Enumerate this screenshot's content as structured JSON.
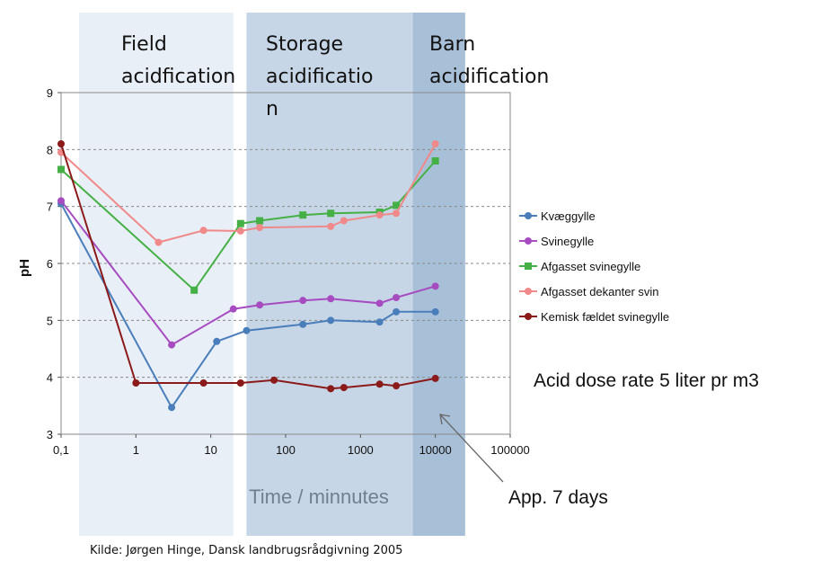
{
  "chart_data": {
    "type": "line",
    "ylabel": "pH",
    "xlabel": "Time / minnutes",
    "x_scale": "log",
    "xlim": [
      0.1,
      100000
    ],
    "ylim": [
      3,
      9
    ],
    "x_ticks": [
      "0,1",
      "1",
      "10",
      "100",
      "1000",
      "10000",
      "100000"
    ],
    "y_ticks": [
      "3",
      "4",
      "5",
      "6",
      "7",
      "8",
      "9"
    ],
    "grid": "horizontal dashed",
    "legend_position": "right",
    "zones": [
      {
        "label_lines": [
          "Field",
          "acidfication"
        ],
        "x_from": 0.1,
        "x_to": 20,
        "color": "#e9eff7"
      },
      {
        "label_lines": [
          "Storage",
          "acidificatio",
          "n"
        ],
        "x_from": 30,
        "x_to": 5000,
        "color": "#c6d6e6"
      },
      {
        "label_lines": [
          "Barn",
          "acidification"
        ],
        "x_from": 5000,
        "x_to": 25000,
        "color": "#a8bfd8"
      }
    ],
    "series": [
      {
        "name": "Kvæggylle",
        "color": "#4a7ebb",
        "x": [
          0.1,
          3,
          12,
          30,
          170,
          400,
          1800,
          3000,
          10000
        ],
        "y": [
          7.05,
          3.47,
          4.63,
          4.82,
          4.93,
          5.0,
          4.97,
          5.15,
          5.15
        ]
      },
      {
        "name": "Svinegylle",
        "color": "#a64cc0",
        "x": [
          0.1,
          3,
          20,
          45,
          170,
          400,
          1800,
          3000,
          10000
        ],
        "y": [
          7.1,
          4.57,
          5.2,
          5.27,
          5.35,
          5.38,
          5.3,
          5.4,
          5.6
        ]
      },
      {
        "name": "Afgasset svinegylle",
        "color": "#45b045",
        "x": [
          0.1,
          6,
          25,
          45,
          170,
          400,
          1800,
          3000,
          10000
        ],
        "y": [
          7.65,
          5.53,
          6.7,
          6.75,
          6.85,
          6.88,
          6.9,
          7.02,
          7.8
        ]
      },
      {
        "name": "Afgasset dekanter svin",
        "color": "#f08a8a",
        "x": [
          0.1,
          2,
          8,
          25,
          45,
          400,
          600,
          1800,
          3000,
          10000
        ],
        "y": [
          7.95,
          6.37,
          6.58,
          6.57,
          6.63,
          6.65,
          6.75,
          6.85,
          6.88,
          8.1
        ]
      },
      {
        "name": "Kemisk fældet svinegylle",
        "color": "#8b1a1a",
        "x": [
          0.1,
          1,
          8,
          25,
          70,
          400,
          600,
          1800,
          3000,
          10000
        ],
        "y": [
          8.1,
          3.9,
          3.9,
          3.9,
          3.95,
          3.8,
          3.82,
          3.88,
          3.85,
          3.98
        ]
      }
    ],
    "annotations": {
      "dose": "Acid dose rate 5 liter pr m3",
      "days": "App. 7 days"
    },
    "source": "Kilde: Jørgen Hinge, Dansk landbrugsrådgivning 2005"
  }
}
